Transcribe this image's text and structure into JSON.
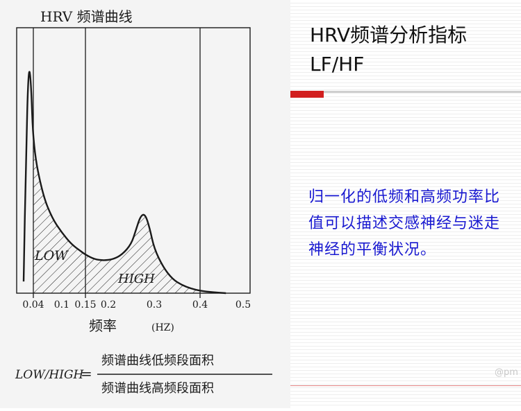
{
  "slide": {
    "title_line1": "HRV频谱分析指标",
    "title_line2": "LF/HF",
    "description": "归一化的低频和高频功率比值可以描述交感神经与迷走神经的平衡状况。",
    "watermark": "@pm",
    "accent_color": "#d21f1f"
  },
  "chart_data": {
    "type": "area",
    "title": "HRV 频谱曲线",
    "xlabel": "频率",
    "xunit": "(HZ)",
    "x_ticks": [
      "0.04",
      "0.1",
      "0.15",
      "0.2",
      "0.3",
      "0.4",
      "0.5"
    ],
    "band_labels": {
      "low": "LOW",
      "high": "HIGH"
    },
    "series": [
      {
        "x": [
          0.0,
          0.01,
          0.02,
          0.03,
          0.04,
          0.06,
          0.08,
          0.1,
          0.12,
          0.14,
          0.15,
          0.17,
          0.19,
          0.21,
          0.23,
          0.25,
          0.26,
          0.27,
          0.28,
          0.29,
          0.3,
          0.32,
          0.34,
          0.36,
          0.38,
          0.4,
          0.43,
          0.46
        ],
        "y": [
          0.05,
          0.6,
          0.97,
          0.92,
          0.62,
          0.42,
          0.32,
          0.26,
          0.21,
          0.18,
          0.165,
          0.145,
          0.14,
          0.145,
          0.165,
          0.21,
          0.27,
          0.33,
          0.34,
          0.28,
          0.19,
          0.11,
          0.06,
          0.035,
          0.02,
          0.01,
          0.004,
          0.0
        ]
      }
    ],
    "hatched_ranges": [
      [
        0.04,
        0.15
      ],
      [
        0.15,
        0.4
      ]
    ],
    "formula": {
      "lhs": "LOW/HIGH",
      "equals": "=",
      "numerator": "频谱曲线低频段面积",
      "denominator": "频谱曲线高频段面积"
    }
  }
}
